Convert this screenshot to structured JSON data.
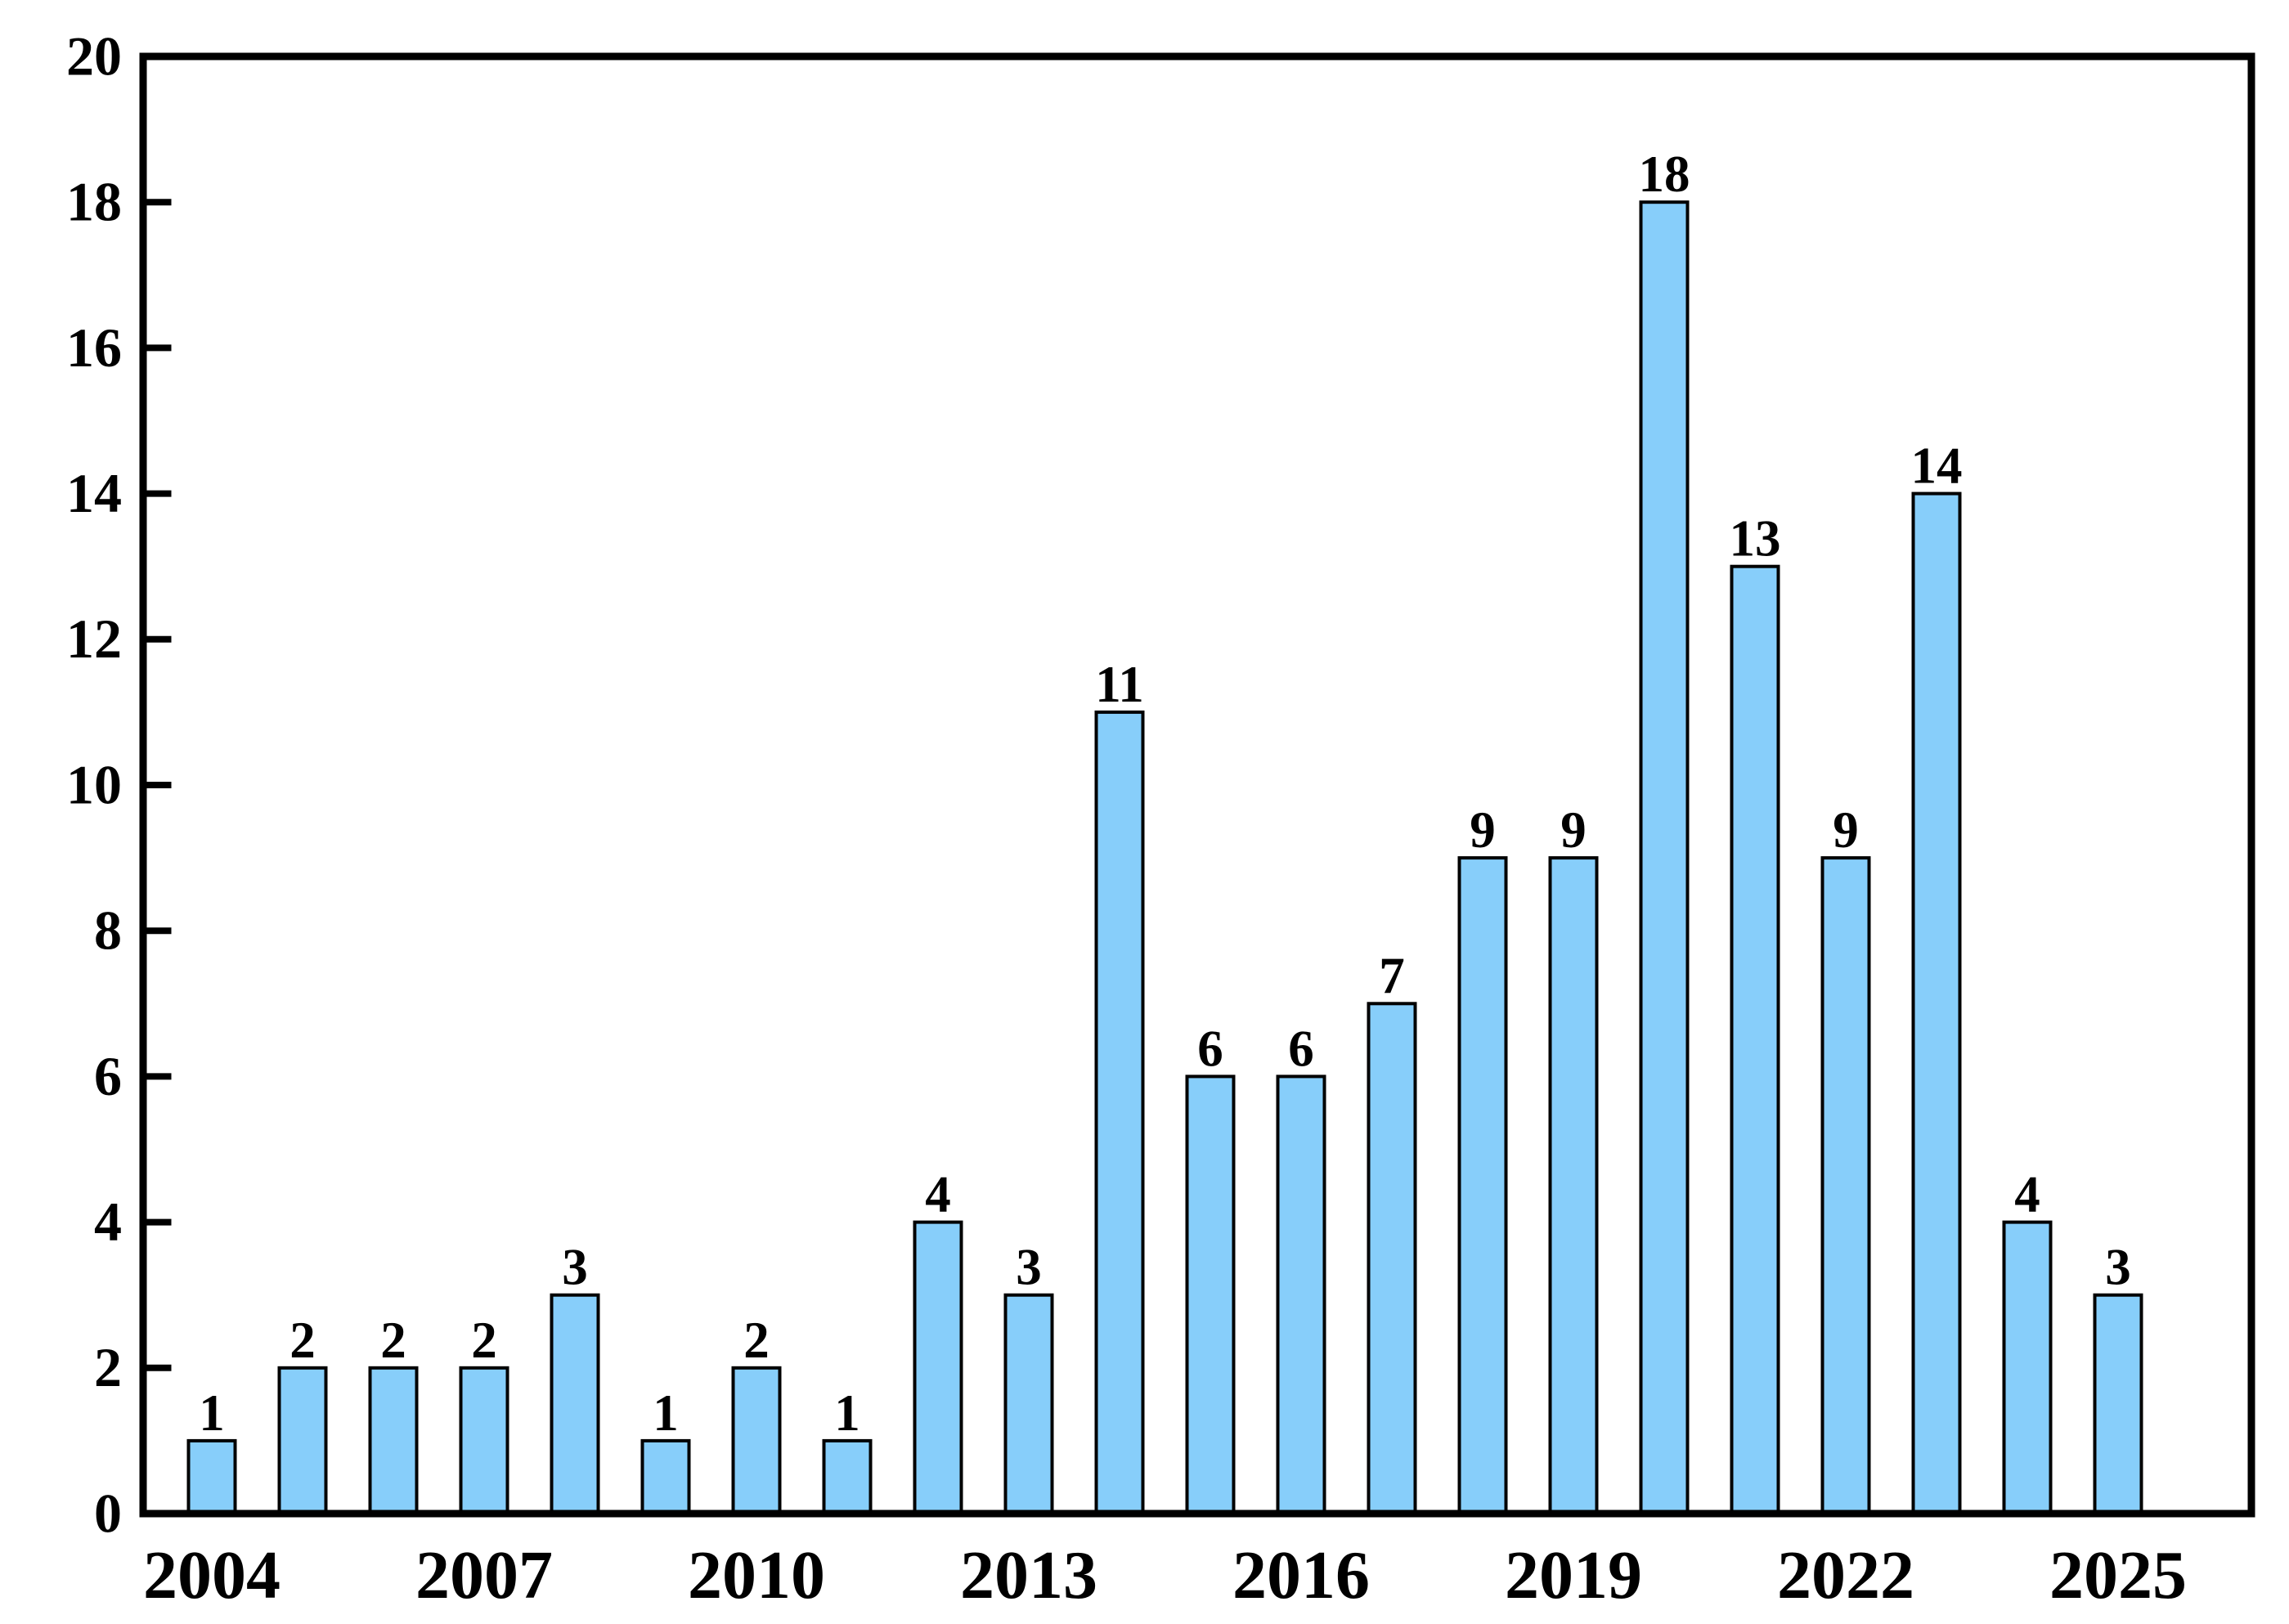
{
  "chart_data": {
    "type": "bar",
    "title": "",
    "categories": [
      2004,
      2005,
      2006,
      2007,
      2008,
      2009,
      2010,
      2011,
      2012,
      2013,
      2014,
      2015,
      2016,
      2017,
      2018,
      2019,
      2020,
      2021,
      2022,
      2023,
      2024,
      2025
    ],
    "values": [
      1,
      2,
      2,
      2,
      3,
      1,
      2,
      1,
      4,
      3,
      11,
      6,
      6,
      7,
      9,
      9,
      18,
      13,
      9,
      14,
      4,
      3
    ],
    "bar_value_labels": [
      "1",
      "2",
      "2",
      "2",
      "3",
      "1",
      "2",
      "1",
      "4",
      "3",
      "11",
      "6",
      "6",
      "7",
      "9",
      "9",
      "18",
      "13",
      "9",
      "14",
      "4",
      "3"
    ],
    "x_tick_labels": [
      "2004",
      "2007",
      "2010",
      "2013",
      "2016",
      "2019",
      "2022",
      "2025"
    ],
    "y_tick_labels": [
      "0",
      "2",
      "4",
      "6",
      "8",
      "10",
      "12",
      "14",
      "16",
      "18",
      "20"
    ],
    "ylim": [
      0,
      20
    ],
    "ytick_step": 2,
    "xlabel": "",
    "ylabel": "",
    "grid": false,
    "legend": false,
    "colors": {
      "bar_fill": "#87CEFA",
      "bar_edge": "#000000",
      "axis": "#000000",
      "background": "#ffffff",
      "text": "#000000"
    }
  }
}
